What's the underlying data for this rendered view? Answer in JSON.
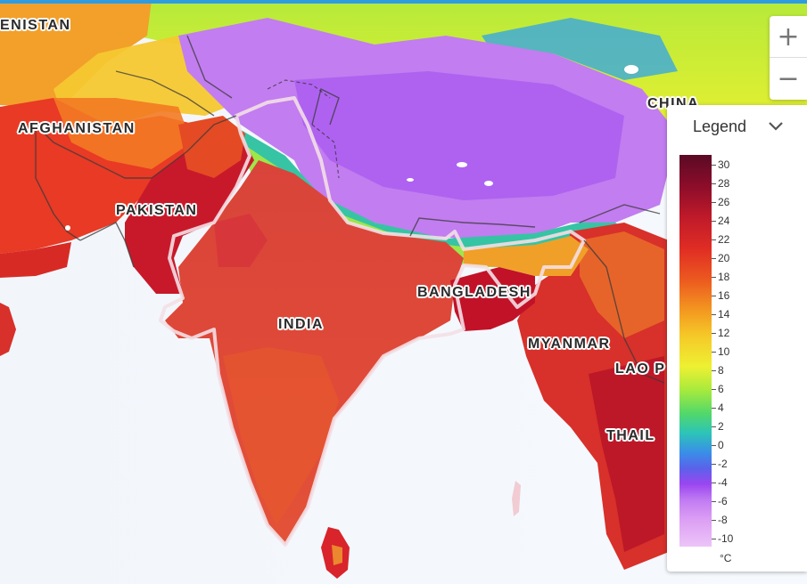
{
  "map": {
    "labels": {
      "turkmenistan": "ENISTAN",
      "afghanistan": "AFGHANISTAN",
      "pakistan": "PAKISTAN",
      "india": "INDIA",
      "bangladesh": "BANGLADESH",
      "myanmar": "MYANMAR",
      "china": "CHINA",
      "laos": "LAO P",
      "thailand": "THAIL"
    }
  },
  "controls": {
    "zoom_in": "+",
    "zoom_out": "−"
  },
  "legend": {
    "title": "Legend",
    "ticks": [
      "30",
      "28",
      "26",
      "24",
      "22",
      "20",
      "18",
      "16",
      "14",
      "12",
      "10",
      "8",
      "6",
      "4",
      "2",
      "0",
      "-2",
      "-4",
      "-6",
      "-8",
      "-10"
    ],
    "unit": "°C",
    "colors": {
      "max": "#5a0a25",
      "mid": "#eef032",
      "min": "#ecc4f8"
    }
  }
}
